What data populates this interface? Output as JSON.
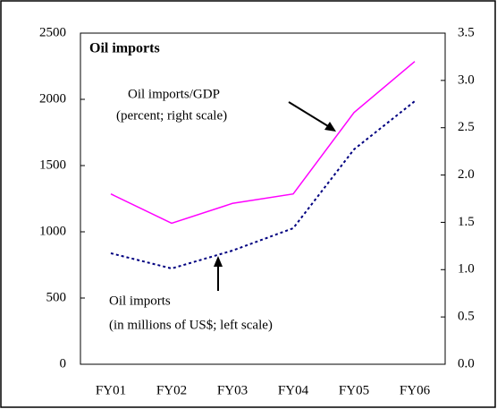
{
  "chart_data": {
    "type": "line",
    "title": "Oil imports",
    "categories": [
      "FY01",
      "FY02",
      "FY03",
      "FY04",
      "FY05",
      "FY06"
    ],
    "series": [
      {
        "name": "Oil imports/GDP",
        "color": "#ff00ff",
        "axis": "y2",
        "dash": "solid",
        "values": [
          1.8,
          1.49,
          1.7,
          1.8,
          2.66,
          3.2
        ]
      },
      {
        "name": "Oil imports",
        "color": "#000080",
        "axis": "y",
        "dash": "dotted",
        "values": [
          838,
          723,
          858,
          1027,
          1622,
          1986
        ]
      }
    ],
    "annotations": [
      "(percent; right scale)",
      "(in millions of US$; left scale)"
    ],
    "ylim": [
      0,
      2500
    ],
    "yticks": [
      0,
      500,
      1000,
      1500,
      2000,
      2500
    ],
    "y2lim": [
      0,
      3.5
    ],
    "y2ticks": [
      {
        "value": 0,
        "label": "0.0"
      },
      0.5,
      {
        "value": 1,
        "label": "1.0"
      },
      1.5,
      {
        "value": 2,
        "label": "2.0"
      },
      2.5,
      {
        "value": 3,
        "label": "3.0"
      },
      3.5
    ],
    "grid": false
  }
}
